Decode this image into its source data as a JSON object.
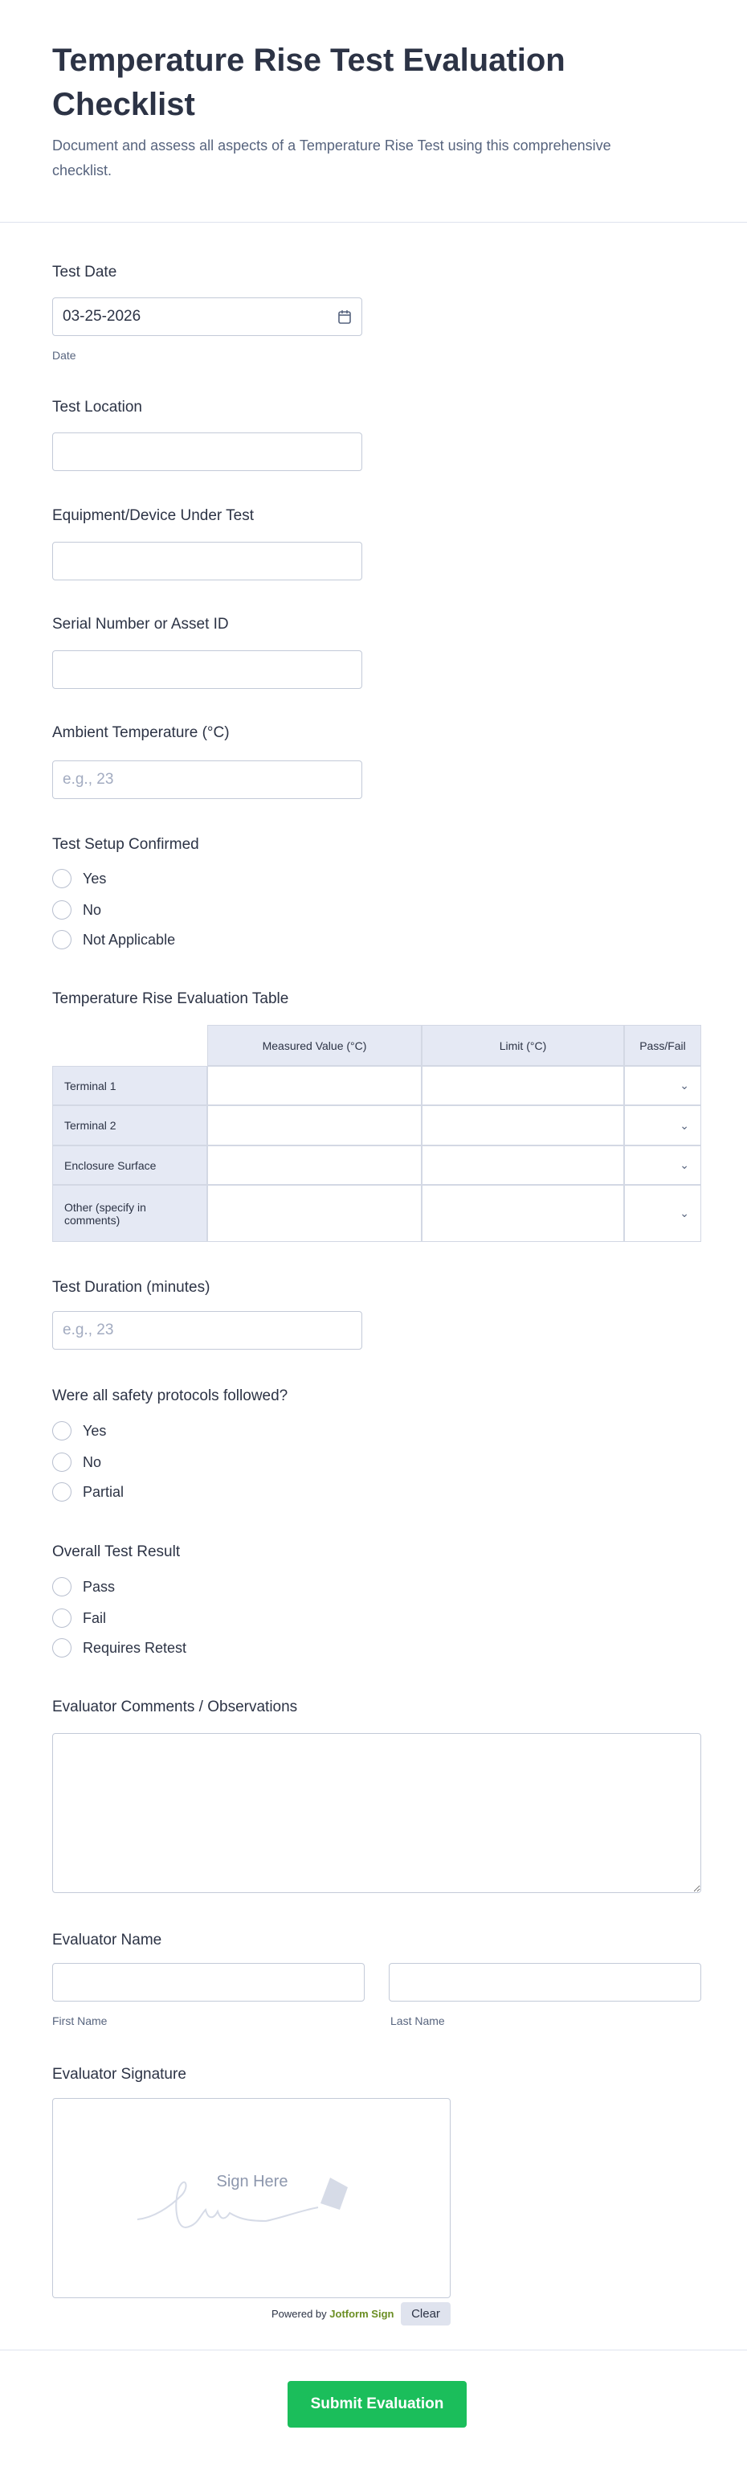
{
  "header": {
    "title": "Temperature Rise Test Evaluation Checklist",
    "subtitle": "Document and assess all aspects of a Temperature Rise Test using this comprehensive checklist."
  },
  "fields": {
    "test_date": {
      "label": "Test Date",
      "value": "03-25-2026",
      "sublabel": "Date"
    },
    "test_location": {
      "label": "Test Location"
    },
    "equipment": {
      "label": "Equipment/Device Under Test"
    },
    "serial": {
      "label": "Serial Number or Asset ID"
    },
    "ambient": {
      "label": "Ambient Temperature (°C)",
      "placeholder": "e.g., 23"
    },
    "setup": {
      "label": "Test Setup Confirmed",
      "options": [
        "Yes",
        "No",
        "Not Applicable"
      ]
    },
    "table": {
      "label": "Temperature Rise Evaluation Table",
      "columns": [
        "Measured Value (°C)",
        "Limit (°C)",
        "Pass/Fail"
      ],
      "rows": [
        "Terminal 1",
        "Terminal 2",
        "Enclosure Surface",
        "Other (specify in comments)"
      ]
    },
    "duration": {
      "label": "Test Duration (minutes)",
      "placeholder": "e.g., 23"
    },
    "safety": {
      "label": "Were all safety protocols followed?",
      "options": [
        "Yes",
        "No",
        "Partial"
      ]
    },
    "result": {
      "label": "Overall Test Result",
      "options": [
        "Pass",
        "Fail",
        "Requires Retest"
      ]
    },
    "comments": {
      "label": "Evaluator Comments / Observations"
    },
    "name": {
      "label": "Evaluator Name",
      "first": "First Name",
      "last": "Last Name"
    },
    "signature": {
      "label": "Evaluator Signature",
      "placeholder": "Sign Here",
      "powered_by": "Powered by",
      "brand": "Jotform Sign",
      "clear": "Clear"
    }
  },
  "submit": {
    "label": "Submit Evaluation"
  },
  "colors": {
    "accent": "#1bbe5b",
    "brand": "#6b8e23"
  }
}
